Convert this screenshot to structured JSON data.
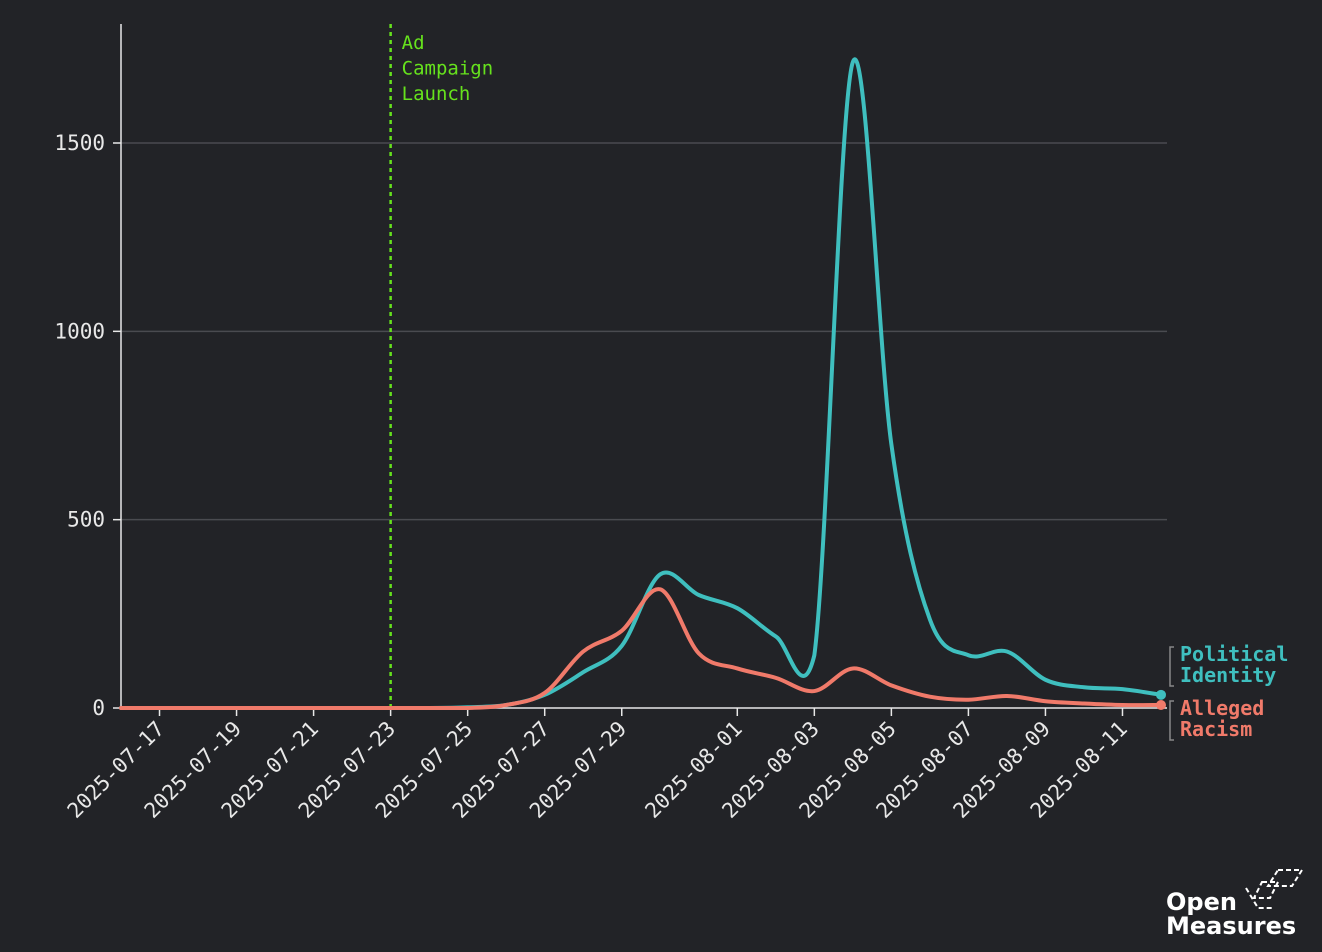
{
  "chart_data": {
    "type": "line",
    "x": [
      "2025-07-16",
      "2025-07-17",
      "2025-07-18",
      "2025-07-19",
      "2025-07-20",
      "2025-07-21",
      "2025-07-22",
      "2025-07-23",
      "2025-07-24",
      "2025-07-25",
      "2025-07-26",
      "2025-07-27",
      "2025-07-28",
      "2025-07-29",
      "2025-07-30",
      "2025-07-31",
      "2025-08-01",
      "2025-08-02",
      "2025-08-03",
      "2025-08-04",
      "2025-08-05",
      "2025-08-06",
      "2025-08-07",
      "2025-08-08",
      "2025-08-09",
      "2025-08-10",
      "2025-08-11",
      "2025-08-12"
    ],
    "series": [
      {
        "name": "Political Identity",
        "color": "#3fbfbf",
        "values": [
          0,
          0,
          0,
          0,
          0,
          0,
          0,
          0,
          0,
          2,
          8,
          35,
          95,
          165,
          355,
          300,
          265,
          190,
          140,
          1715,
          700,
          235,
          140,
          150,
          75,
          55,
          50,
          35
        ]
      },
      {
        "name": "Alleged Racism",
        "color": "#f07a6a",
        "values": [
          0,
          0,
          0,
          0,
          0,
          0,
          0,
          0,
          0,
          0,
          8,
          40,
          150,
          205,
          315,
          145,
          105,
          80,
          45,
          105,
          60,
          30,
          22,
          32,
          18,
          12,
          8,
          8
        ]
      }
    ],
    "xticks": [
      "2025-07-17",
      "2025-07-19",
      "2025-07-21",
      "2025-07-23",
      "2025-07-25",
      "2025-07-27",
      "2025-07-29",
      "2025-08-01",
      "2025-08-03",
      "2025-08-05",
      "2025-08-07",
      "2025-08-09",
      "2025-08-11"
    ],
    "yticks": [
      0,
      500,
      1000,
      1500
    ],
    "ylim": [
      0,
      1820
    ],
    "xlim": [
      "2025-07-16",
      "2025-08-12"
    ],
    "grid": "horizontal",
    "legend": "right-end labels",
    "annotations": [
      {
        "x": "2025-07-23",
        "lines": [
          "Ad",
          "Campaign",
          "Launch"
        ],
        "color": "#66e21d"
      }
    ],
    "background": "#222327"
  },
  "brand": {
    "line1": "Open",
    "line2": "Measures"
  }
}
